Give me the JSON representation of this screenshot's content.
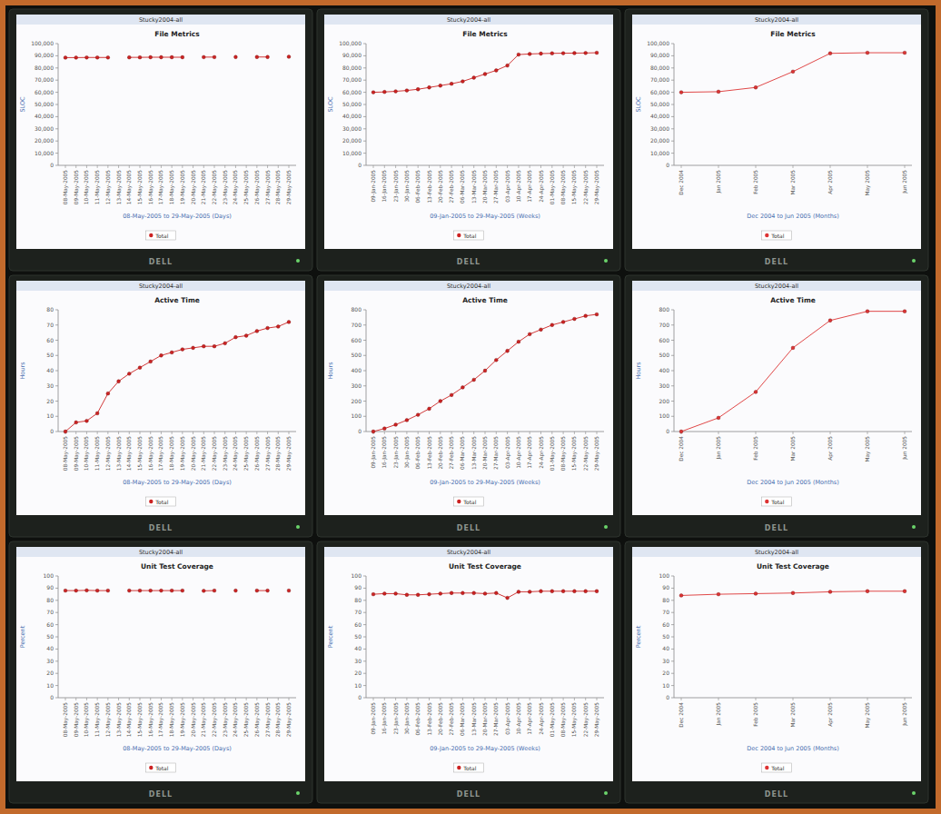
{
  "bezel_label": "DELL",
  "chart_data": [
    {
      "type": "line",
      "subtitle": "Stucky2004-all",
      "title": "File Metrics",
      "y_label": "SLOC",
      "x_label": "08-May-2005 to 29-May-2005 (Days)",
      "categories": [
        "08-May-2005",
        "09-May-2005",
        "10-May-2005",
        "11-May-2005",
        "12-May-2005",
        "13-May-2005",
        "14-May-2005",
        "15-May-2005",
        "16-May-2005",
        "17-May-2005",
        "18-May-2005",
        "19-May-2005",
        "20-May-2005",
        "21-May-2005",
        "22-May-2005",
        "23-May-2005",
        "24-May-2005",
        "25-May-2005",
        "26-May-2005",
        "27-May-2005",
        "28-May-2005",
        "29-May-2005"
      ],
      "series": [
        {
          "name": "Total",
          "color": "#cc2222",
          "marker": "circle",
          "line_style": "solid",
          "values": [
            88500,
            88500,
            88600,
            88600,
            88600,
            null,
            88700,
            88700,
            88800,
            88800,
            88800,
            88800,
            null,
            88900,
            88900,
            null,
            89000,
            null,
            89000,
            89000,
            null,
            89200
          ]
        }
      ],
      "ylim": [
        0,
        100000
      ],
      "yticks": [
        0,
        {
          "value": 10000,
          "label": "10,000"
        },
        {
          "value": 20000,
          "label": "20,000"
        },
        {
          "value": 30000,
          "label": "30,000"
        },
        {
          "value": 40000,
          "label": "40,000"
        },
        {
          "value": 50000,
          "label": "50,000"
        },
        {
          "value": 60000,
          "label": "60,000"
        },
        {
          "value": 70000,
          "label": "70,000"
        },
        {
          "value": 80000,
          "label": "80,000"
        },
        {
          "value": 90000,
          "label": "90,000"
        },
        {
          "value": 100000,
          "label": "100,000"
        }
      ],
      "grid": false,
      "legend": "bottom"
    },
    {
      "type": "line",
      "subtitle": "Stucky2004-all",
      "title": "File Metrics",
      "y_label": "SLOC",
      "x_label": "09-Jan-2005 to 29-May-2005 (Weeks)",
      "categories": [
        "09-Jan-2005",
        "16-Jan-2005",
        "23-Jan-2005",
        "30-Jan-2005",
        "06-Feb-2005",
        "13-Feb-2005",
        "20-Feb-2005",
        "27-Feb-2005",
        "06-Mar-2005",
        "13-Mar-2005",
        "20-Mar-2005",
        "27-Mar-2005",
        "03-Apr-2005",
        "10-Apr-2005",
        "17-Apr-2005",
        "24-Apr-2005",
        "01-May-2005",
        "08-May-2005",
        "15-May-2005",
        "22-May-2005",
        "29-May-2005"
      ],
      "series": [
        {
          "name": "Total",
          "color": "#cc2222",
          "marker": "circle",
          "line_style": "solid",
          "values": [
            60000,
            60300,
            60800,
            61500,
            62500,
            64000,
            65500,
            67000,
            69000,
            72000,
            75000,
            78000,
            82000,
            91000,
            91500,
            91800,
            92000,
            92100,
            92200,
            92300,
            92500
          ]
        }
      ],
      "ylim": [
        0,
        100000
      ],
      "yticks": [
        0,
        {
          "value": 10000,
          "label": "10,000"
        },
        {
          "value": 20000,
          "label": "20,000"
        },
        {
          "value": 30000,
          "label": "30,000"
        },
        {
          "value": 40000,
          "label": "40,000"
        },
        {
          "value": 50000,
          "label": "50,000"
        },
        {
          "value": 60000,
          "label": "60,000"
        },
        {
          "value": 70000,
          "label": "70,000"
        },
        {
          "value": 80000,
          "label": "80,000"
        },
        {
          "value": 90000,
          "label": "90,000"
        },
        {
          "value": 100000,
          "label": "100,000"
        }
      ],
      "grid": false,
      "legend": "bottom"
    },
    {
      "type": "line",
      "subtitle": "Stucky2004-all",
      "title": "File Metrics",
      "y_label": "SLOC",
      "x_label": "Dec 2004 to Jun 2005 (Months)",
      "categories": [
        "Dec 2004",
        "Jan 2005",
        "Feb 2005",
        "Mar 2005",
        "Apr 2005",
        "May 2005",
        "Jun 2005"
      ],
      "series": [
        {
          "name": "Total",
          "color": "#dd3333",
          "marker": "circle",
          "line_style": "solid",
          "values": [
            60000,
            60500,
            64000,
            77000,
            92000,
            92500,
            92500
          ]
        }
      ],
      "ylim": [
        0,
        100000
      ],
      "yticks": [
        0,
        {
          "value": 10000,
          "label": "10,000"
        },
        {
          "value": 20000,
          "label": "20,000"
        },
        {
          "value": 30000,
          "label": "30,000"
        },
        {
          "value": 40000,
          "label": "40,000"
        },
        {
          "value": 50000,
          "label": "50,000"
        },
        {
          "value": 60000,
          "label": "60,000"
        },
        {
          "value": 70000,
          "label": "70,000"
        },
        {
          "value": 80000,
          "label": "80,000"
        },
        {
          "value": 90000,
          "label": "90,000"
        },
        {
          "value": 100000,
          "label": "100,000"
        }
      ],
      "grid": false,
      "legend": "bottom"
    },
    {
      "type": "line",
      "subtitle": "Stucky2004-all",
      "title": "Active Time",
      "y_label": "Hours",
      "x_label": "08-May-2005 to 29-May-2005 (Days)",
      "categories": [
        "08-May-2005",
        "09-May-2005",
        "10-May-2005",
        "11-May-2005",
        "12-May-2005",
        "13-May-2005",
        "14-May-2005",
        "15-May-2005",
        "16-May-2005",
        "17-May-2005",
        "18-May-2005",
        "19-May-2005",
        "20-May-2005",
        "21-May-2005",
        "22-May-2005",
        "23-May-2005",
        "24-May-2005",
        "25-May-2005",
        "26-May-2005",
        "27-May-2005",
        "28-May-2005",
        "29-May-2005"
      ],
      "series": [
        {
          "name": "Total",
          "color": "#cc2222",
          "marker": "circle",
          "line_style": "solid",
          "values": [
            0,
            6,
            7,
            12,
            25,
            33,
            38,
            42,
            46,
            50,
            52,
            54,
            55,
            56,
            56,
            58,
            62,
            63,
            66,
            68,
            69,
            72
          ]
        }
      ],
      "ylim": [
        0,
        80
      ],
      "yticks": [
        0,
        10,
        20,
        30,
        40,
        50,
        60,
        70,
        80
      ],
      "grid": false,
      "legend": "bottom"
    },
    {
      "type": "line",
      "subtitle": "Stucky2004-all",
      "title": "Active Time",
      "y_label": "Hours",
      "x_label": "09-Jan-2005 to 29-May-2005 (Weeks)",
      "categories": [
        "09-Jan-2005",
        "16-Jan-2005",
        "23-Jan-2005",
        "30-Jan-2005",
        "06-Feb-2005",
        "13-Feb-2005",
        "20-Feb-2005",
        "27-Feb-2005",
        "06-Mar-2005",
        "13-Mar-2005",
        "20-Mar-2005",
        "27-Mar-2005",
        "03-Apr-2005",
        "10-Apr-2005",
        "17-Apr-2005",
        "24-Apr-2005",
        "01-May-2005",
        "08-May-2005",
        "15-May-2005",
        "22-May-2005",
        "29-May-2005"
      ],
      "series": [
        {
          "name": "Total",
          "color": "#cc2222",
          "marker": "circle",
          "line_style": "solid",
          "values": [
            0,
            20,
            45,
            75,
            110,
            150,
            200,
            240,
            290,
            340,
            400,
            470,
            530,
            590,
            640,
            670,
            700,
            720,
            740,
            760,
            770
          ]
        }
      ],
      "ylim": [
        0,
        800
      ],
      "yticks": [
        0,
        100,
        200,
        300,
        400,
        500,
        600,
        700,
        800
      ],
      "grid": false,
      "legend": "bottom"
    },
    {
      "type": "line",
      "subtitle": "Stucky2004-all",
      "title": "Active Time",
      "y_label": "Hours",
      "x_label": "Dec 2004 to Jun 2005 (Months)",
      "categories": [
        "Dec 2004",
        "Jan 2005",
        "Feb 2005",
        "Mar 2005",
        "Apr 2005",
        "May 2005",
        "Jun 2005"
      ],
      "series": [
        {
          "name": "Total",
          "color": "#dd3333",
          "marker": "circle",
          "line_style": "solid",
          "values": [
            0,
            90,
            260,
            550,
            730,
            790,
            790
          ]
        }
      ],
      "ylim": [
        0,
        800
      ],
      "yticks": [
        0,
        100,
        200,
        300,
        400,
        500,
        600,
        700,
        800
      ],
      "grid": false,
      "legend": "bottom"
    },
    {
      "type": "line",
      "subtitle": "Stucky2004-all",
      "title": "Unit Test Coverage",
      "y_label": "Percent",
      "x_label": "08-May-2005 to 29-May-2005 (Days)",
      "categories": [
        "08-May-2005",
        "09-May-2005",
        "10-May-2005",
        "11-May-2005",
        "12-May-2005",
        "13-May-2005",
        "14-May-2005",
        "15-May-2005",
        "16-May-2005",
        "17-May-2005",
        "18-May-2005",
        "19-May-2005",
        "20-May-2005",
        "21-May-2005",
        "22-May-2005",
        "23-May-2005",
        "24-May-2005",
        "25-May-2005",
        "26-May-2005",
        "27-May-2005",
        "28-May-2005",
        "29-May-2005"
      ],
      "series": [
        {
          "name": "Total",
          "color": "#cc2222",
          "marker": "circle",
          "line_style": "solid",
          "values": [
            88,
            88,
            88.2,
            88,
            88,
            null,
            88,
            88,
            88,
            88,
            88,
            88,
            null,
            87.8,
            88,
            null,
            88,
            null,
            88,
            88,
            null,
            88
          ]
        }
      ],
      "ylim": [
        0,
        100
      ],
      "yticks": [
        0,
        10,
        20,
        30,
        40,
        50,
        60,
        70,
        80,
        90,
        100
      ],
      "grid": false,
      "legend": "bottom"
    },
    {
      "type": "line",
      "subtitle": "Stucky2004-all",
      "title": "Unit Test Coverage",
      "y_label": "Percent",
      "x_label": "09-Jan-2005 to 29-May-2005 (Weeks)",
      "categories": [
        "09-Jan-2005",
        "16-Jan-2005",
        "23-Jan-2005",
        "30-Jan-2005",
        "06-Feb-2005",
        "13-Feb-2005",
        "20-Feb-2005",
        "27-Feb-2005",
        "06-Mar-2005",
        "13-Mar-2005",
        "20-Mar-2005",
        "27-Mar-2005",
        "03-Apr-2005",
        "10-Apr-2005",
        "17-Apr-2005",
        "24-Apr-2005",
        "01-May-2005",
        "08-May-2005",
        "15-May-2005",
        "22-May-2005",
        "29-May-2005"
      ],
      "series": [
        {
          "name": "Total",
          "color": "#cc2222",
          "marker": "circle",
          "line_style": "solid",
          "values": [
            85,
            85.5,
            85.5,
            84.5,
            84.5,
            85,
            85.5,
            86,
            86,
            86,
            85.5,
            86,
            82,
            87,
            87,
            87.5,
            87.5,
            87.5,
            87.5,
            87.5,
            87.5
          ]
        }
      ],
      "ylim": [
        0,
        100
      ],
      "yticks": [
        0,
        10,
        20,
        30,
        40,
        50,
        60,
        70,
        80,
        90,
        100
      ],
      "grid": false,
      "legend": "bottom"
    },
    {
      "type": "line",
      "subtitle": "Stucky2004-all",
      "title": "Unit Test Coverage",
      "y_label": "Percent",
      "x_label": "Dec 2004 to Jun 2005 (Months)",
      "categories": [
        "Dec 2004",
        "Jan 2005",
        "Feb 2005",
        "Mar 2005",
        "Apr 2005",
        "May 2005",
        "Jun 2005"
      ],
      "series": [
        {
          "name": "Total",
          "color": "#dd3333",
          "marker": "circle",
          "line_style": "solid",
          "values": [
            84,
            85,
            85.5,
            86,
            87,
            87.5,
            87.5
          ]
        }
      ],
      "ylim": [
        0,
        100
      ],
      "yticks": [
        0,
        10,
        20,
        30,
        40,
        50,
        60,
        70,
        80,
        90,
        100
      ],
      "grid": false,
      "legend": "bottom"
    }
  ]
}
